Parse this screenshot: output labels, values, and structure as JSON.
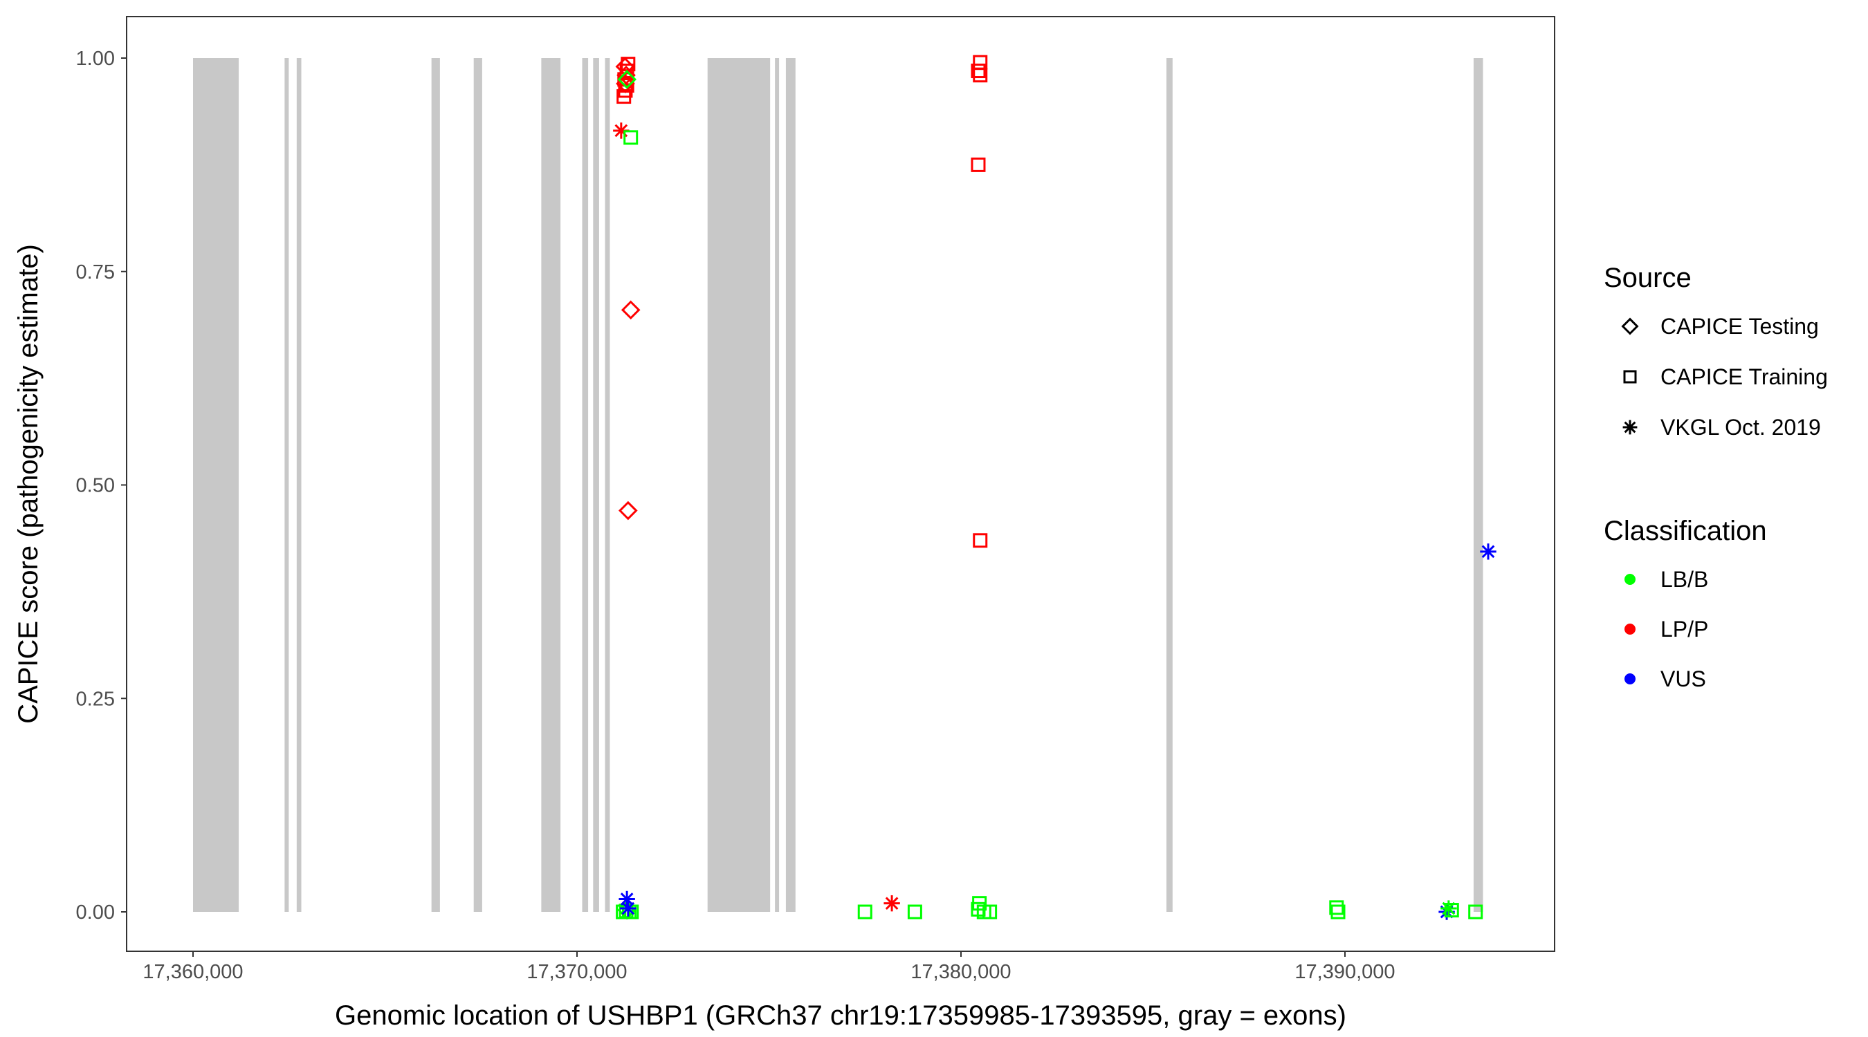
{
  "chart_data": {
    "type": "scatter",
    "xlabel": "Genomic location of USHBP1 (GRCh37 chr19:17359985-17393595, gray = exons)",
    "ylabel": "CAPICE score (pathogenicity estimate)",
    "xlim": [
      17356800,
      17394000
    ],
    "ylim": [
      -0.045,
      1.045
    ],
    "x_ticks": [
      17360000,
      17370000,
      17380000,
      17390000
    ],
    "x_tick_labels": [
      "17,360,000",
      "17,370,000",
      "17,380,000",
      "17,390,000"
    ],
    "y_ticks": [
      0,
      0.25,
      0.5,
      0.75,
      1.0
    ],
    "y_tick_labels": [
      "0.00",
      "0.25",
      "0.50",
      "0.75",
      "1.00"
    ],
    "grid": false,
    "exon_color": "#c8c8c8",
    "exons": [
      [
        17360000,
        17361190
      ],
      [
        17362385,
        17362480
      ],
      [
        17362700,
        17362820
      ],
      [
        17366210,
        17366430
      ],
      [
        17367310,
        17367530
      ],
      [
        17369070,
        17369570
      ],
      [
        17370135,
        17370290
      ],
      [
        17370420,
        17370575
      ],
      [
        17370730,
        17370855
      ],
      [
        17373400,
        17375030
      ],
      [
        17375155,
        17375250
      ],
      [
        17375440,
        17375690
      ],
      [
        17385350,
        17385510
      ],
      [
        17393350,
        17393595
      ]
    ],
    "legend": {
      "placement": "right",
      "source_title": "Source",
      "source_items": [
        {
          "label": "CAPICE Testing",
          "shape": "diamond"
        },
        {
          "label": "CAPICE Training",
          "shape": "square"
        },
        {
          "label": "VKGL Oct. 2019",
          "shape": "star"
        }
      ],
      "class_title": "Classification",
      "class_items": [
        {
          "label": "LB/B",
          "color": "#00ff00"
        },
        {
          "label": "LP/P",
          "color": "#ff0000"
        },
        {
          "label": "VUS",
          "color": "#0000ff"
        }
      ]
    },
    "points": [
      {
        "x": 17371250,
        "y": 0.99,
        "source": "diamond",
        "cls": "LP/P"
      },
      {
        "x": 17371280,
        "y": 0.98,
        "source": "diamond",
        "cls": "LP/P"
      },
      {
        "x": 17371260,
        "y": 0.97,
        "source": "diamond",
        "cls": "LP/P"
      },
      {
        "x": 17371400,
        "y": 0.705,
        "source": "diamond",
        "cls": "LP/P"
      },
      {
        "x": 17371330,
        "y": 0.47,
        "source": "diamond",
        "cls": "LP/P"
      },
      {
        "x": 17371330,
        "y": 0.993,
        "source": "square",
        "cls": "LP/P"
      },
      {
        "x": 17371300,
        "y": 0.985,
        "source": "square",
        "cls": "LP/P"
      },
      {
        "x": 17371240,
        "y": 0.975,
        "source": "square",
        "cls": "LP/P"
      },
      {
        "x": 17371300,
        "y": 0.968,
        "source": "square",
        "cls": "LP/P"
      },
      {
        "x": 17371260,
        "y": 0.962,
        "source": "square",
        "cls": "LP/P"
      },
      {
        "x": 17371220,
        "y": 0.955,
        "source": "square",
        "cls": "LP/P"
      },
      {
        "x": 17371300,
        "y": 0.975,
        "source": "diamond",
        "cls": "LB/B"
      },
      {
        "x": 17371150,
        "y": 0.915,
        "source": "star",
        "cls": "LP/P"
      },
      {
        "x": 17371400,
        "y": 0.907,
        "source": "square",
        "cls": "LB/B"
      },
      {
        "x": 17371200,
        "y": 0.0,
        "source": "square",
        "cls": "LB/B"
      },
      {
        "x": 17371280,
        "y": 0.001,
        "source": "square",
        "cls": "LB/B"
      },
      {
        "x": 17371360,
        "y": 0.0,
        "source": "square",
        "cls": "LB/B"
      },
      {
        "x": 17371420,
        "y": 0.0,
        "source": "square",
        "cls": "LB/B"
      },
      {
        "x": 17371300,
        "y": 0.002,
        "source": "diamond",
        "cls": "LB/B"
      },
      {
        "x": 17371300,
        "y": 0.015,
        "source": "star",
        "cls": "VUS"
      },
      {
        "x": 17371330,
        "y": 0.004,
        "source": "star",
        "cls": "VUS"
      },
      {
        "x": 17380500,
        "y": 0.995,
        "source": "square",
        "cls": "LP/P"
      },
      {
        "x": 17380450,
        "y": 0.985,
        "source": "square",
        "cls": "LP/P"
      },
      {
        "x": 17380500,
        "y": 0.98,
        "source": "square",
        "cls": "LP/P"
      },
      {
        "x": 17380450,
        "y": 0.875,
        "source": "square",
        "cls": "LP/P"
      },
      {
        "x": 17380500,
        "y": 0.435,
        "source": "square",
        "cls": "LP/P"
      },
      {
        "x": 17380480,
        "y": 0.01,
        "source": "square",
        "cls": "LB/B"
      },
      {
        "x": 17380450,
        "y": 0.003,
        "source": "square",
        "cls": "LB/B"
      },
      {
        "x": 17380600,
        "y": 0.0,
        "source": "square",
        "cls": "LB/B"
      },
      {
        "x": 17380750,
        "y": 0.0,
        "source": "square",
        "cls": "LB/B"
      },
      {
        "x": 17377500,
        "y": 0.0,
        "source": "square",
        "cls": "LB/B"
      },
      {
        "x": 17378800,
        "y": 0.0,
        "source": "square",
        "cls": "LB/B"
      },
      {
        "x": 17378200,
        "y": 0.01,
        "source": "star",
        "cls": "LP/P"
      },
      {
        "x": 17389780,
        "y": 0.005,
        "source": "square",
        "cls": "LB/B"
      },
      {
        "x": 17389820,
        "y": 0.0,
        "source": "square",
        "cls": "LB/B"
      },
      {
        "x": 17392650,
        "y": 0.0,
        "source": "star",
        "cls": "VUS"
      },
      {
        "x": 17392700,
        "y": 0.004,
        "source": "star",
        "cls": "LB/B"
      },
      {
        "x": 17392780,
        "y": 0.002,
        "source": "square",
        "cls": "LB/B"
      },
      {
        "x": 17393400,
        "y": 0.0,
        "source": "square",
        "cls": "LB/B"
      },
      {
        "x": 17393730,
        "y": 0.422,
        "source": "star",
        "cls": "VUS"
      }
    ]
  }
}
